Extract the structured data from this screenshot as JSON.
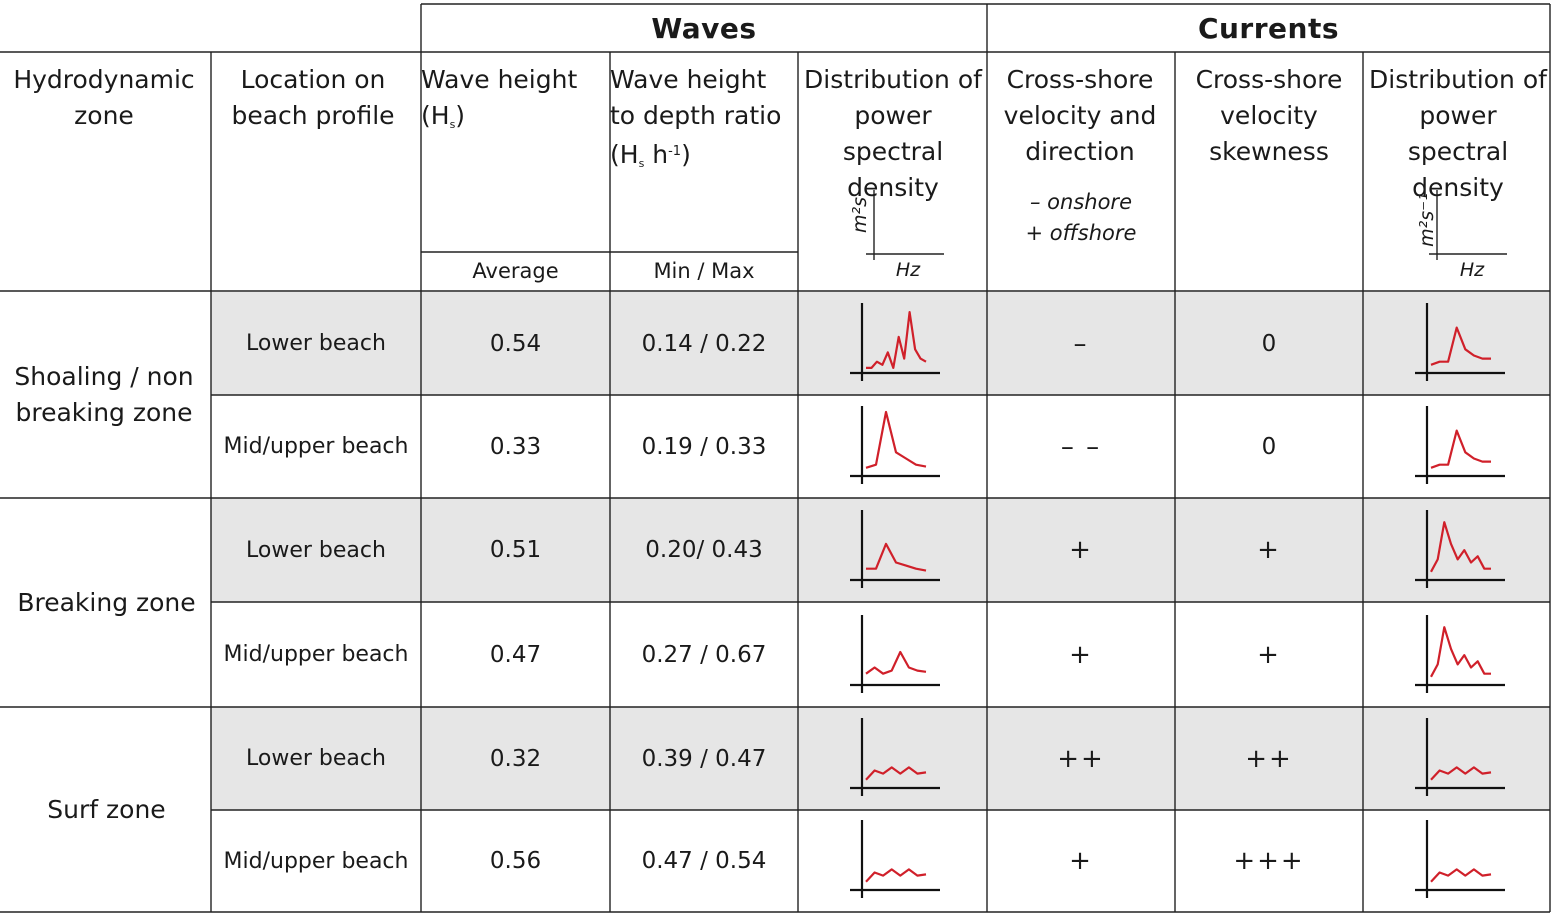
{
  "group_headers": {
    "waves": "Waves",
    "currents": "Currents"
  },
  "columns": {
    "zone": "Hydrodynamic zone",
    "location": "Location on beach profile",
    "wave_height_main": "Wave height",
    "wave_height_symbol_pre": "(H",
    "wave_height_symbol_sub": "s",
    "wave_height_symbol_post": ")",
    "wave_height_sub": "Average",
    "ratio_line1": "Wave height",
    "ratio_line2": "to depth ratio",
    "ratio_symbol_pre": "(H",
    "ratio_symbol_sub": "s",
    "ratio_symbol_mid": " h",
    "ratio_symbol_sup": "-1",
    "ratio_symbol_post": ")",
    "ratio_sub": "Min / Max",
    "psd_waves": "Distribution of power spectral density",
    "psd_waves_ylabel": "m²s",
    "psd_waves_xlabel": "Hz",
    "velocity": "Cross-shore velocity and direction",
    "velocity_legend_onshore": "– onshore",
    "velocity_legend_offshore": "+ offshore",
    "skewness": "Cross-shore velocity skewness",
    "psd_currents": "Distribution of power spectral density",
    "psd_currents_ylabel": "m²s⁻¹",
    "psd_currents_xlabel": "Hz"
  },
  "zones": [
    {
      "name": "Shoaling / non breaking zone"
    },
    {
      "name": "Breaking zone"
    },
    {
      "name": "Surf zone"
    }
  ],
  "rows": [
    {
      "location": "Lower beach",
      "wave_height": "0.54",
      "ratio": "0.14 / 0.22",
      "velocity": "–",
      "skewness": "0",
      "wave_psd": [
        0.05,
        0.05,
        0.15,
        0.1,
        0.3,
        0.05,
        0.55,
        0.2,
        0.95,
        0.35,
        0.2,
        0.15
      ],
      "current_psd": [
        0.1,
        0.15,
        0.15,
        0.7,
        0.35,
        0.25,
        0.2,
        0.2
      ]
    },
    {
      "location": "Mid/upper beach",
      "wave_height": "0.33",
      "ratio": "0.19 / 0.33",
      "velocity": "– –",
      "skewness": "0",
      "wave_psd": [
        0.1,
        0.15,
        1.0,
        0.35,
        0.25,
        0.15,
        0.12
      ],
      "current_psd": [
        0.1,
        0.15,
        0.15,
        0.7,
        0.35,
        0.25,
        0.2,
        0.2
      ]
    },
    {
      "location": "Lower beach",
      "wave_height": "0.51",
      "ratio": "0.20/ 0.43",
      "velocity": "+",
      "skewness": "+",
      "wave_psd": [
        0.15,
        0.15,
        0.55,
        0.25,
        0.2,
        0.15,
        0.12
      ],
      "current_psd": [
        0.1,
        0.3,
        0.9,
        0.55,
        0.3,
        0.45,
        0.25,
        0.35,
        0.15,
        0.15
      ]
    },
    {
      "location": "Mid/upper beach",
      "wave_height": "0.47",
      "ratio": "0.27 / 0.67",
      "velocity": "+",
      "skewness": "+",
      "wave_psd": [
        0.15,
        0.25,
        0.15,
        0.2,
        0.5,
        0.25,
        0.2,
        0.18
      ],
      "current_psd": [
        0.1,
        0.3,
        0.9,
        0.55,
        0.3,
        0.45,
        0.25,
        0.35,
        0.15,
        0.15
      ]
    },
    {
      "location": "Lower beach",
      "wave_height": "0.32",
      "ratio": "0.39 / 0.47",
      "velocity": "++",
      "skewness": "++",
      "wave_psd": [
        0.1,
        0.25,
        0.2,
        0.3,
        0.2,
        0.3,
        0.2,
        0.22
      ],
      "current_psd": [
        0.1,
        0.25,
        0.2,
        0.3,
        0.2,
        0.3,
        0.2,
        0.22
      ]
    },
    {
      "location": "Mid/upper beach",
      "wave_height": "0.56",
      "ratio": "0.47 / 0.54",
      "velocity": "+",
      "skewness": "+++",
      "wave_psd": [
        0.1,
        0.25,
        0.2,
        0.3,
        0.2,
        0.3,
        0.2,
        0.22
      ],
      "current_psd": [
        0.1,
        0.25,
        0.2,
        0.3,
        0.2,
        0.3,
        0.2,
        0.22
      ]
    }
  ]
}
